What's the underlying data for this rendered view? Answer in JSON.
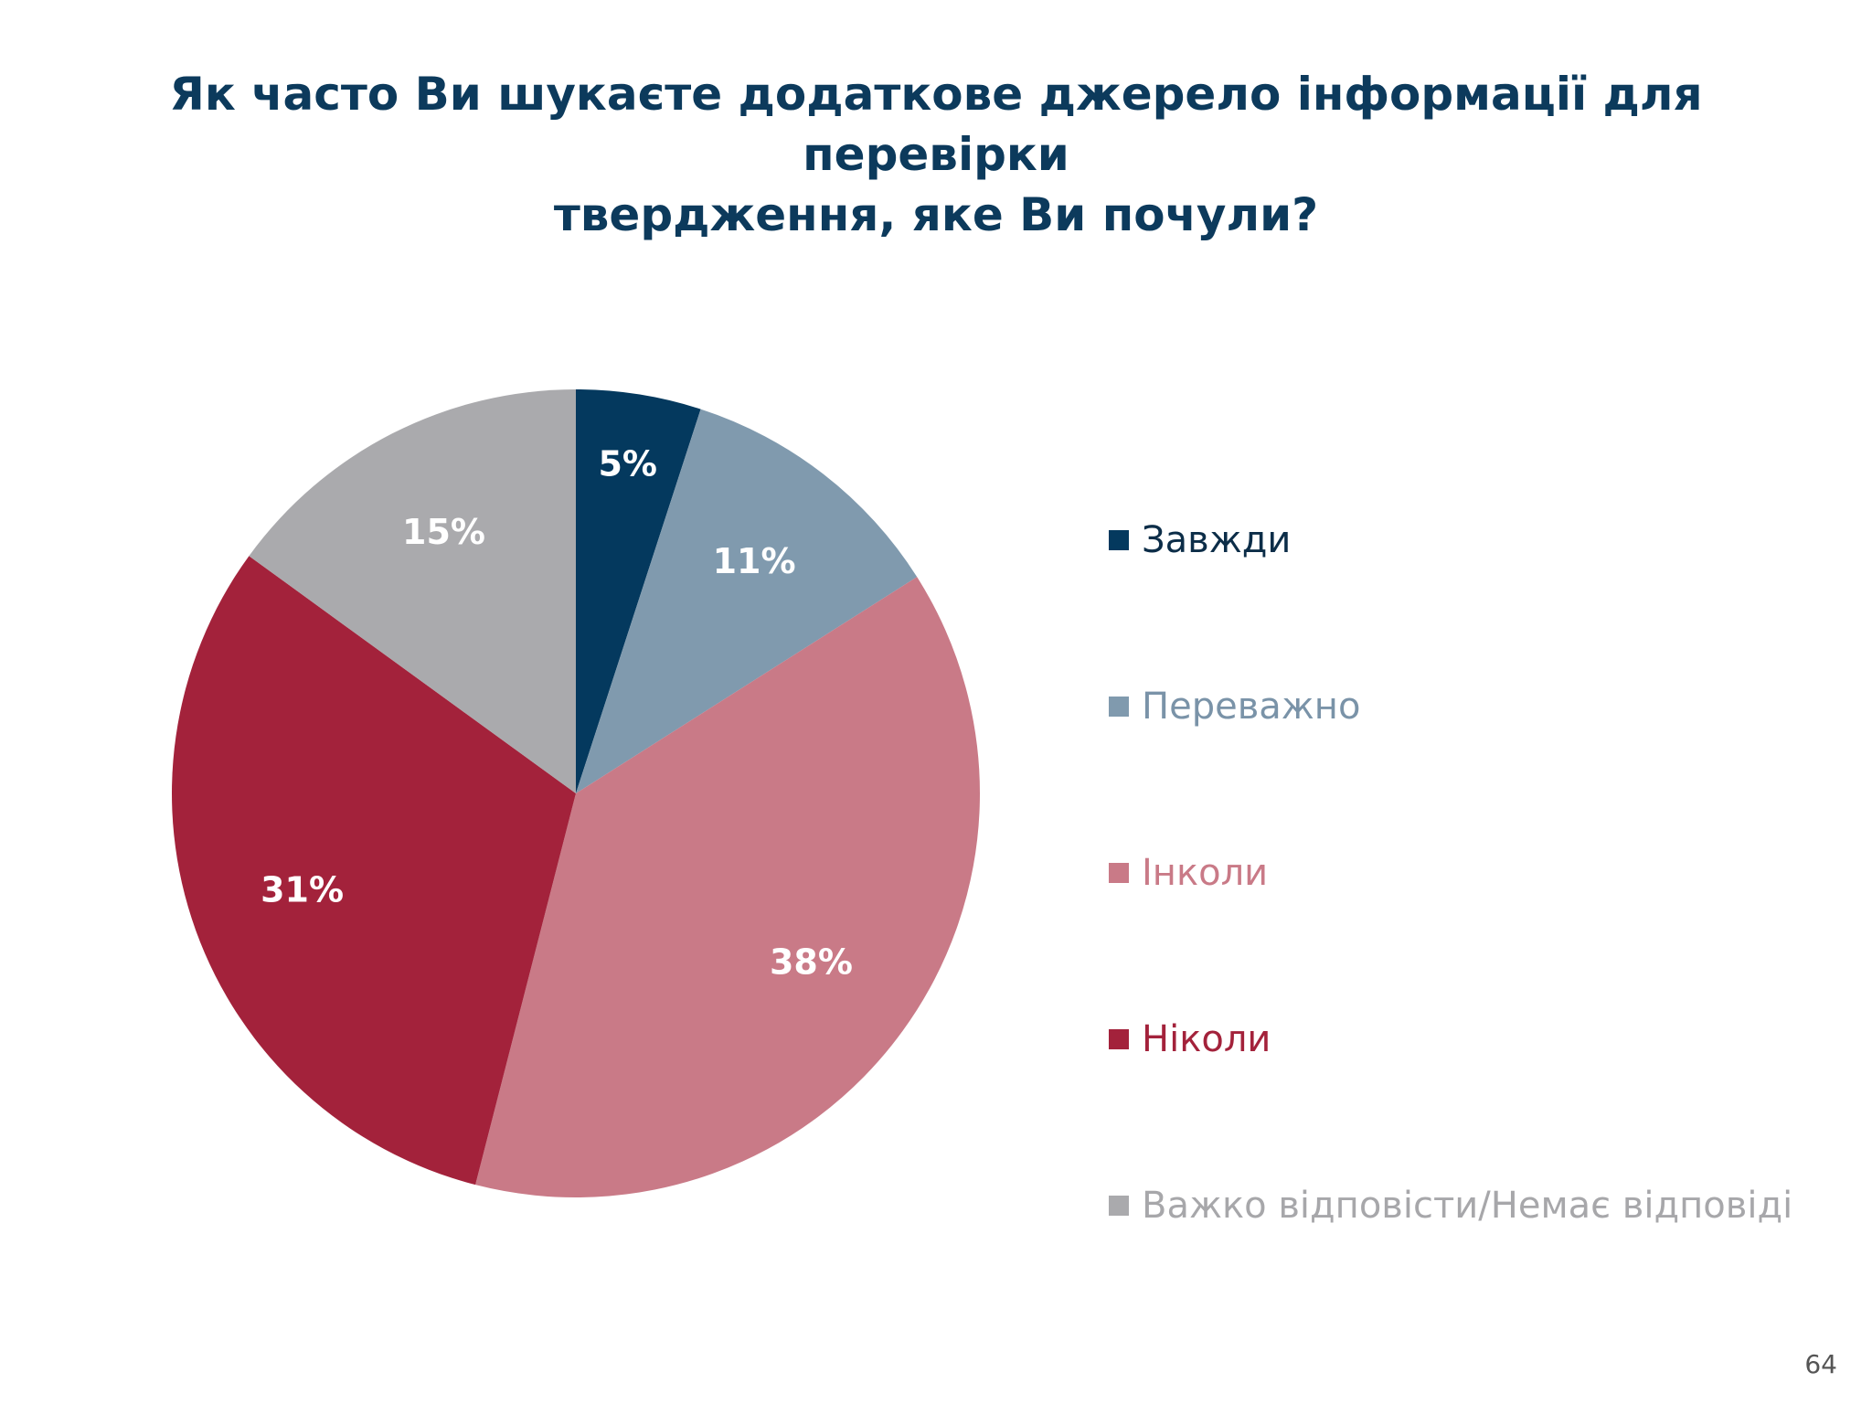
{
  "title": {
    "line1": "Як часто Ви шукаєте додаткове джерело інформації для перевірки",
    "line2": "твердження, яке Ви почули?"
  },
  "chart_data": {
    "type": "pie",
    "title": "Як часто Ви шукаєте додаткове джерело інформації для перевірки твердження, яке Ви почули?",
    "start_angle_deg": 0,
    "direction": "clockwise",
    "legend_position": "right",
    "slices": [
      {
        "label": "Завжди",
        "value": 5,
        "value_label": "5%",
        "color": "#04395e",
        "legend_text_color": "#0c2d48"
      },
      {
        "label": "Переважно",
        "value": 11,
        "value_label": "11%",
        "color": "#809aae",
        "legend_text_color": "#7a93a8"
      },
      {
        "label": "Інколи",
        "value": 38,
        "value_label": "38%",
        "color": "#c97a87",
        "legend_text_color": "#c97a87"
      },
      {
        "label": "Ніколи",
        "value": 31,
        "value_label": "31%",
        "color": "#a3223b",
        "legend_text_color": "#a3223b"
      },
      {
        "label": "Важко відповісти/Немає відповіді",
        "value": 15,
        "value_label": "15%",
        "color": "#aaaaad",
        "legend_text_color": "#a7a7aa"
      }
    ]
  },
  "page_number": "64"
}
